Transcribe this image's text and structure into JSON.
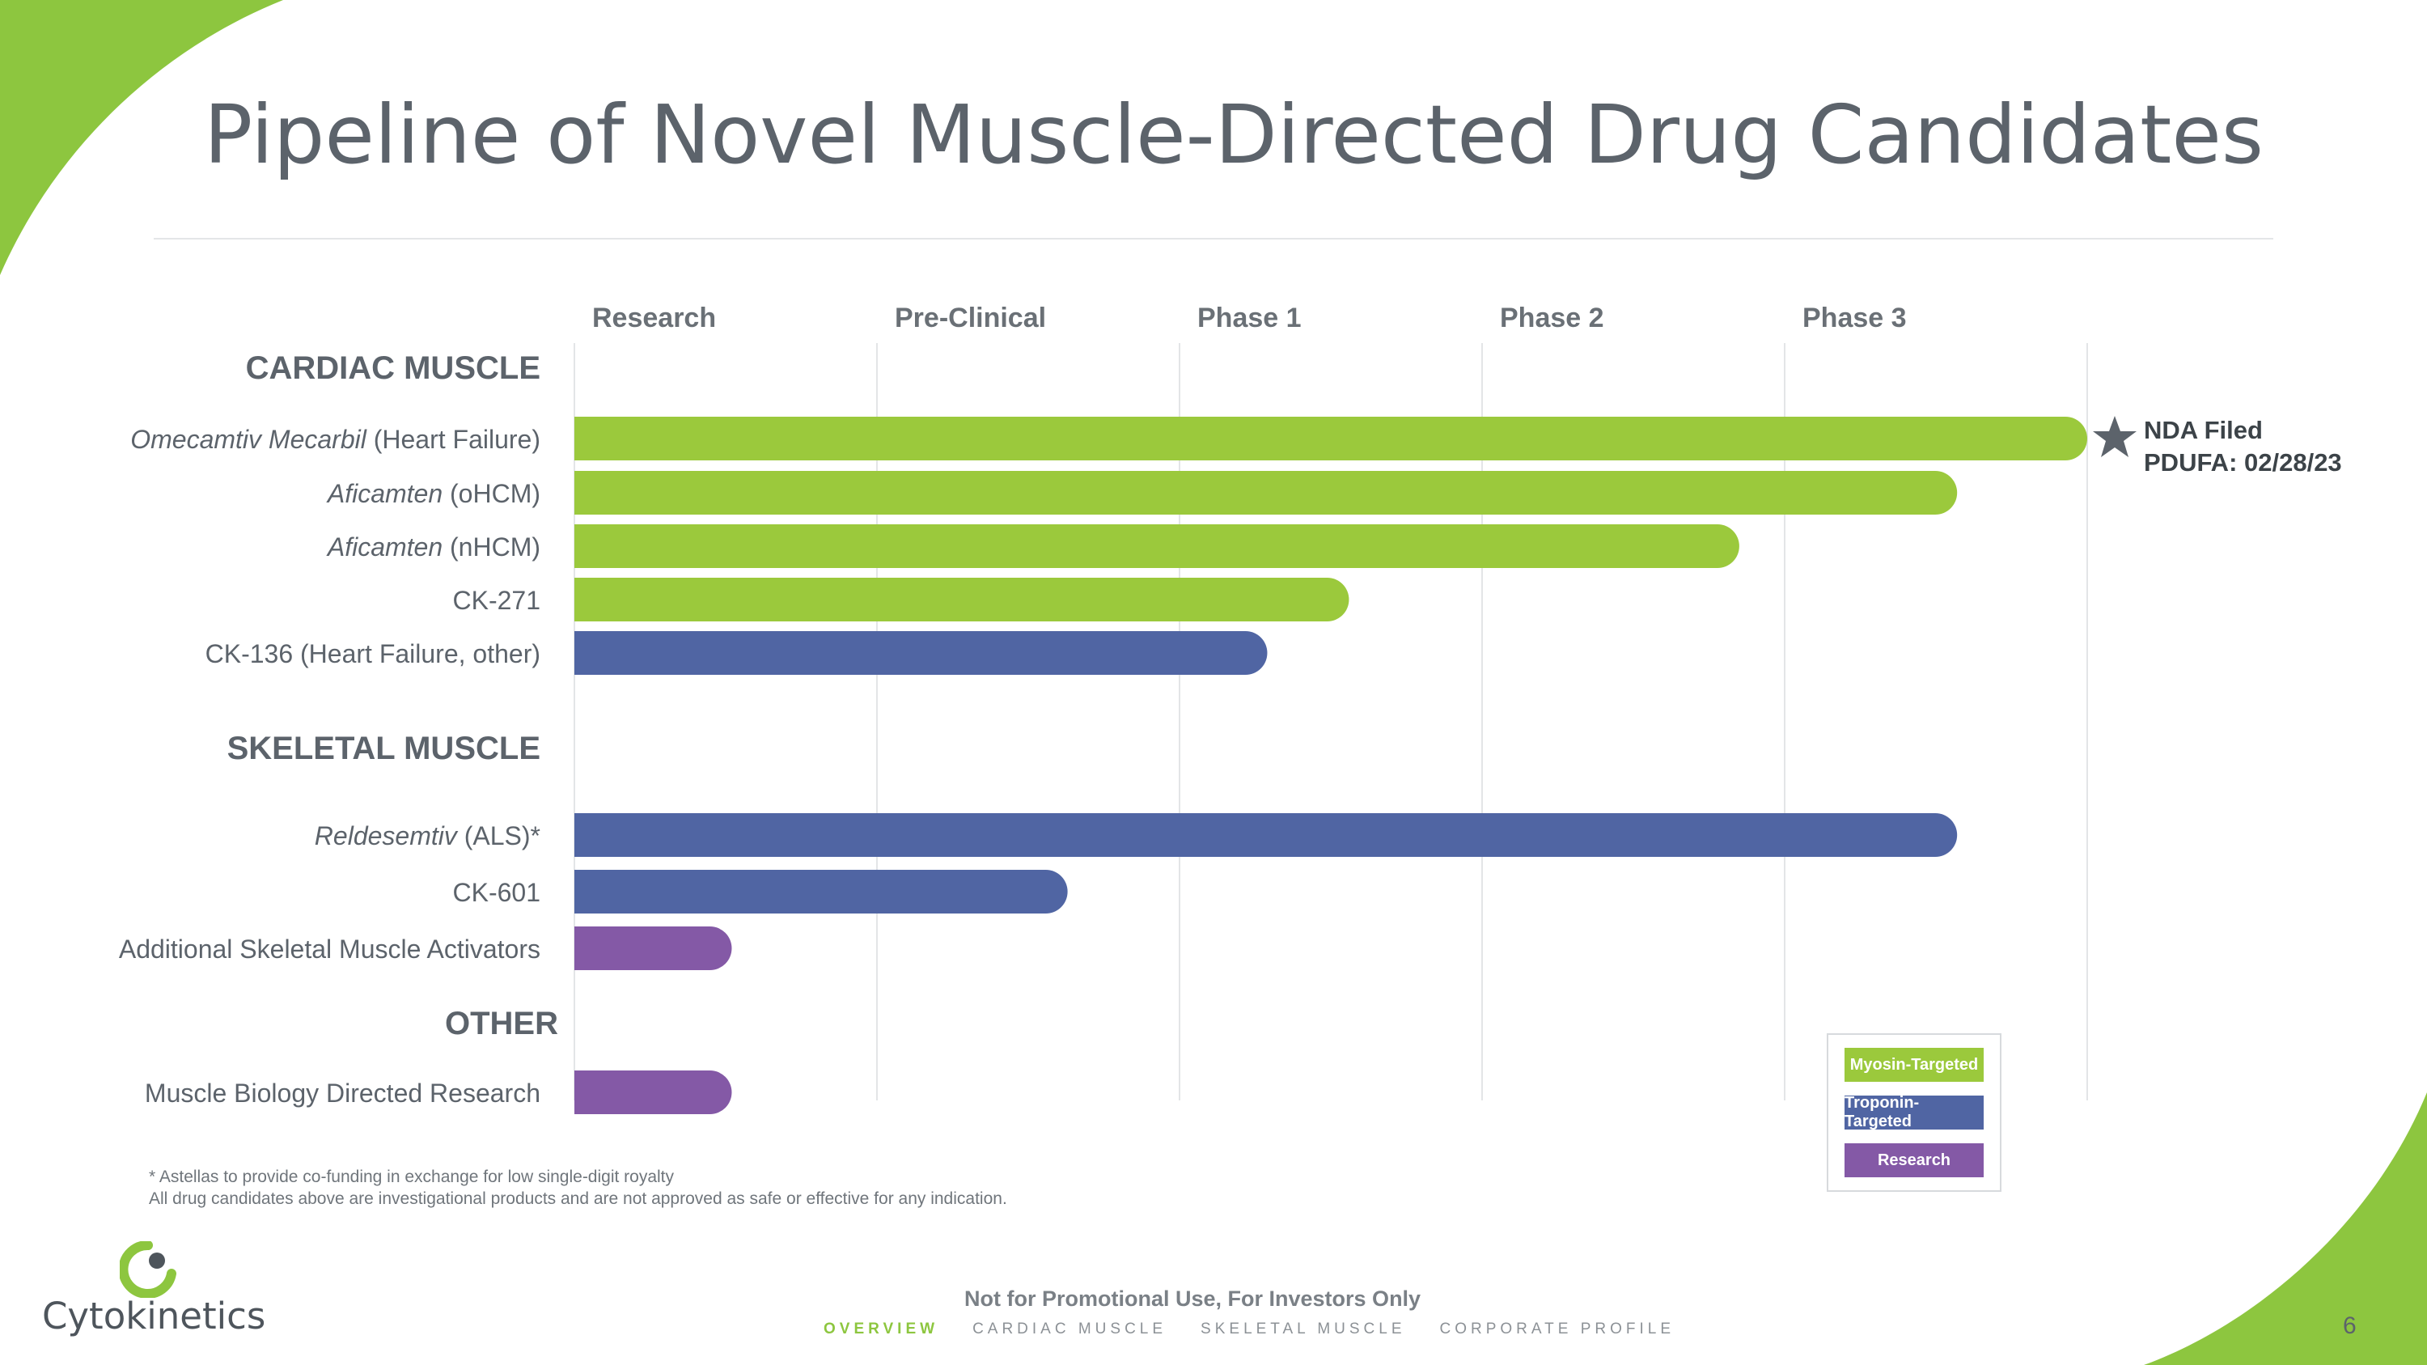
{
  "slide": {
    "title": "Pipeline of Novel Muscle-Directed Drug Candidates",
    "footnote_1": "* Astellas to provide co-funding in exchange for low single-digit royalty",
    "footnote_2": "All drug candidates above are investigational products and are not approved as safe or effective for any indication.",
    "page_number": "6"
  },
  "brand": {
    "name": "Cytokinetics",
    "green": "#9bc93c",
    "blue": "#5065a3",
    "purple": "#8459a6",
    "text_dark": "#5c636b"
  },
  "footer": {
    "title": "Not for Promotional Use, For Investors Only",
    "nav": [
      "OVERVIEW",
      "CARDIAC MUSCLE",
      "SKELETAL MUSCLE",
      "CORPORATE PROFILE"
    ],
    "active": "OVERVIEW"
  },
  "legend": {
    "items": [
      {
        "label": "Myosin-Targeted",
        "color": "#9bc93c"
      },
      {
        "label": "Troponin-Targeted",
        "color": "#5065a3"
      },
      {
        "label": "Research",
        "color": "#8459a6"
      }
    ]
  },
  "annotation": {
    "line1": "NDA Filed",
    "line2": "PDUFA: 02/28/23",
    "icon": "star-icon"
  },
  "chart_data": {
    "type": "bar",
    "orientation": "horizontal",
    "title": "Pipeline of Novel Muscle-Directed Drug Candidates",
    "stages": [
      "Research",
      "Pre-Clinical",
      "Phase 1",
      "Phase 2",
      "Phase 3"
    ],
    "x_unit": "development stage (0 = start of Research, 5 = end of Phase 3)",
    "xlim": [
      0,
      5
    ],
    "groups": [
      {
        "name": "CARDIAC MUSCLE",
        "rows": [
          {
            "italic": "Omecamtiv Mecarbil",
            "rest": " (Heart Failure)",
            "value": 5.0,
            "category": "Myosin-Targeted"
          },
          {
            "italic": "Aficamten",
            "rest": " (oHCM)",
            "value": 4.57,
            "category": "Myosin-Targeted"
          },
          {
            "italic": "Aficamten",
            "rest": " (nHCM)",
            "value": 3.85,
            "category": "Myosin-Targeted"
          },
          {
            "italic": "",
            "rest": "CK-271",
            "value": 2.56,
            "category": "Myosin-Targeted"
          },
          {
            "italic": "",
            "rest": "CK-136 (Heart Failure, other)",
            "value": 2.29,
            "category": "Troponin-Targeted"
          }
        ]
      },
      {
        "name": "SKELETAL MUSCLE",
        "rows": [
          {
            "italic": "Reldesemtiv",
            "rest": " (ALS)*",
            "value": 4.57,
            "category": "Troponin-Targeted"
          },
          {
            "italic": "",
            "rest": "CK-601",
            "value": 1.63,
            "category": "Troponin-Targeted"
          },
          {
            "italic": "",
            "rest": "Additional Skeletal Muscle Activators",
            "value": 0.52,
            "category": "Research"
          }
        ]
      },
      {
        "name": "OTHER",
        "rows": [
          {
            "italic": "",
            "rest": "Muscle Biology Directed Research",
            "value": 0.52,
            "category": "Research"
          }
        ]
      }
    ]
  }
}
